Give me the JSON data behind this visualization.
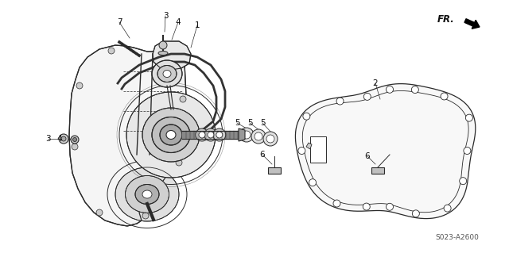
{
  "bg_color": "#ffffff",
  "diagram_code": "S023-A2600",
  "fr_label": "FR.",
  "line_color": "#2a2a2a",
  "label_color": "#111111",
  "label_fs": 7.5,
  "small_fs": 6.5,
  "figsize": [
    6.4,
    3.19
  ],
  "dpi": 100
}
